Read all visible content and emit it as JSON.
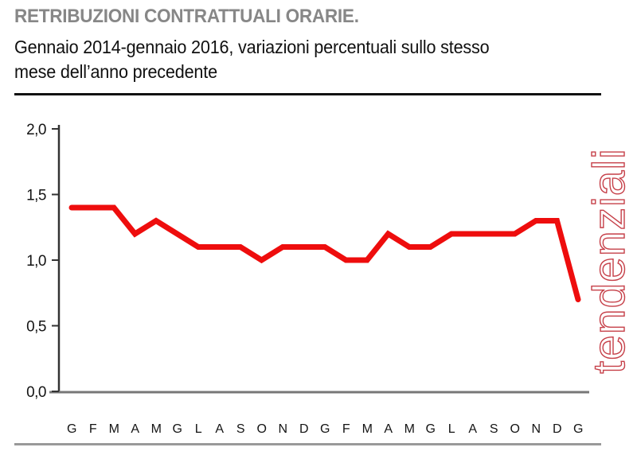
{
  "header": {
    "title": "RETRIBUZIONI CONTRATTUALI ORARIE.",
    "subtitle_line1": "Gennaio 2014-gennaio 2016, variazioni percentuali sullo stesso",
    "subtitle_line2": "mese dell’anno precedente"
  },
  "side_label": "tendenziali",
  "colors": {
    "line": "#ee0d0d",
    "side_label": "#c64049",
    "title": "#878787",
    "axis": "#333333",
    "baseline": "#777777",
    "rule_top": "#111111",
    "rule_bottom": "#999999"
  },
  "chart_data": {
    "type": "line",
    "title": "RETRIBUZIONI CONTRATTUALI ORARIE.",
    "subtitle": "Gennaio 2014-gennaio 2016, variazioni percentuali sullo stesso mese dell’anno precedente",
    "x": [
      "G",
      "F",
      "M",
      "A",
      "M",
      "G",
      "L",
      "A",
      "S",
      "O",
      "N",
      "D",
      "G",
      "F",
      "M",
      "A",
      "M",
      "G",
      "L",
      "A",
      "S",
      "O",
      "N",
      "D",
      "G"
    ],
    "x_period": "Gennaio 2014 - Gennaio 2016",
    "series": [
      {
        "name": "tendenziali",
        "values": [
          1.4,
          1.4,
          1.4,
          1.2,
          1.3,
          1.2,
          1.1,
          1.1,
          1.1,
          1.0,
          1.1,
          1.1,
          1.1,
          1.0,
          1.0,
          1.2,
          1.1,
          1.1,
          1.2,
          1.2,
          1.2,
          1.2,
          1.3,
          1.3,
          0.7
        ]
      }
    ],
    "ylim": [
      0.0,
      2.0
    ],
    "yticks": [
      2.0,
      1.5,
      1.0,
      0.5,
      0.0
    ],
    "ytick_labels": [
      "2,0",
      "1,5",
      "1,0",
      "0,5",
      "0,0"
    ],
    "grid": false,
    "legend": "none",
    "line_color": "#ee0d0d",
    "line_width": 7
  }
}
